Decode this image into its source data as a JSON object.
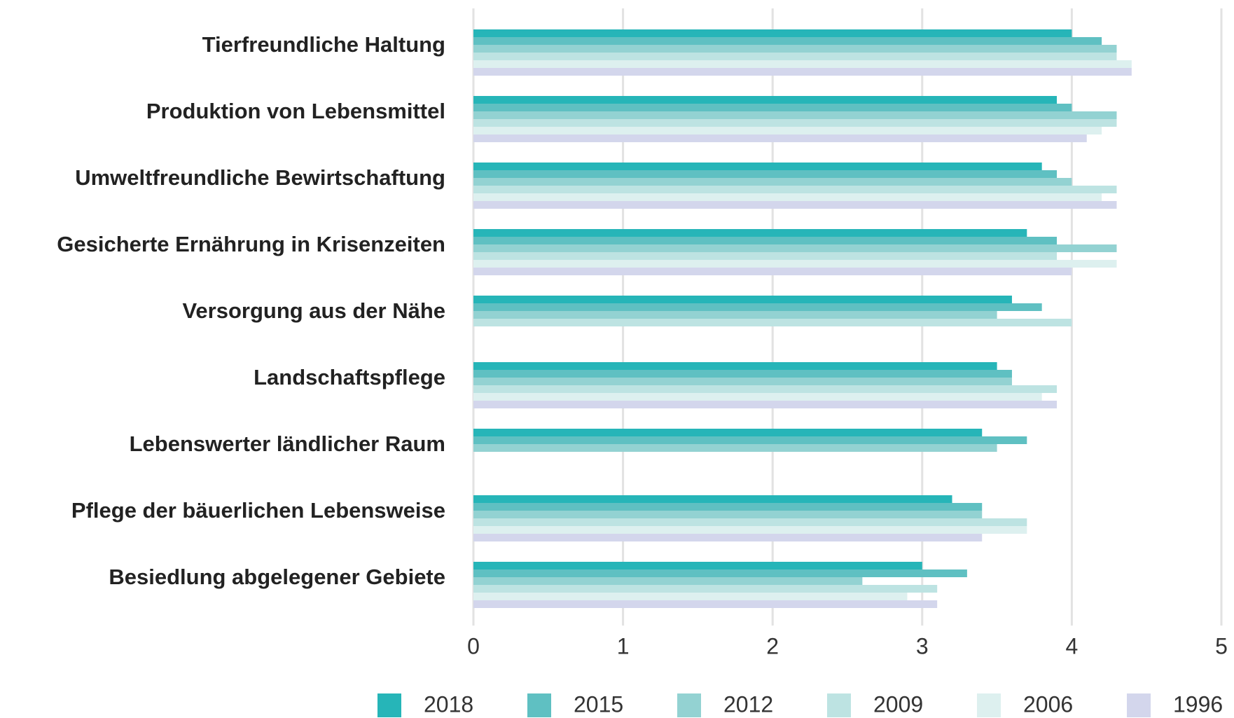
{
  "chart_data": {
    "type": "hbar",
    "categories": [
      "Tierfreundliche Haltung",
      "Produktion von Lebensmittel",
      "Umweltfreundliche Bewirtschaftung",
      "Gesicherte Ernährung in Krisenzeiten",
      "Versorgung aus der Nähe",
      "Landschaftspflege",
      "Lebenswerter ländlicher Raum",
      "Pflege der bäuerlichen Lebensweise",
      "Besiedlung abgelegener Gebiete"
    ],
    "series": [
      {
        "name": "2018",
        "color": "#26b5b8",
        "values": [
          4.0,
          3.9,
          3.8,
          3.7,
          3.6,
          3.5,
          3.4,
          3.2,
          3.0
        ]
      },
      {
        "name": "2015",
        "color": "#5fc0c2",
        "values": [
          4.2,
          4.0,
          3.9,
          3.9,
          3.8,
          3.6,
          3.7,
          3.4,
          3.3
        ]
      },
      {
        "name": "2012",
        "color": "#93d2d2",
        "values": [
          4.3,
          4.3,
          4.0,
          4.3,
          3.5,
          3.6,
          3.5,
          3.4,
          2.6
        ]
      },
      {
        "name": "2009",
        "color": "#bde3e2",
        "values": [
          4.3,
          4.3,
          4.3,
          3.9,
          4.0,
          3.9,
          null,
          3.7,
          3.1
        ]
      },
      {
        "name": "2006",
        "color": "#ddf0ef",
        "values": [
          4.4,
          4.2,
          4.2,
          4.3,
          null,
          3.8,
          null,
          3.7,
          2.9
        ]
      },
      {
        "name": "1996",
        "color": "#d3d6ec",
        "values": [
          4.4,
          4.1,
          4.3,
          4.0,
          null,
          3.9,
          null,
          3.4,
          3.1
        ]
      }
    ],
    "xlim": [
      0,
      5
    ],
    "xticks": [
      0,
      1,
      2,
      3,
      4,
      5
    ],
    "grid": true,
    "legend": "bottom"
  }
}
